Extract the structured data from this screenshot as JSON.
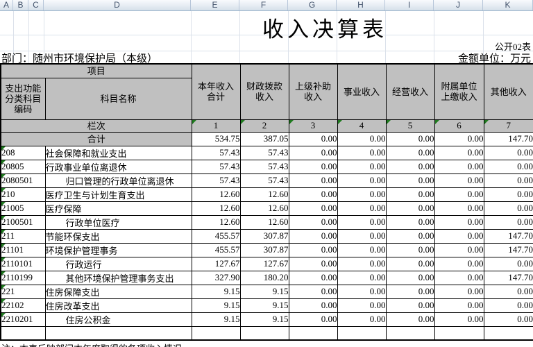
{
  "sheet": {
    "column_letters": [
      "A",
      "B",
      "C",
      "D",
      "E",
      "F",
      "G",
      "H",
      "I",
      "J",
      "K"
    ]
  },
  "title": "收入决算表",
  "meta": {
    "table_code": "公开02表",
    "department": "部门：随州市环境保护局（本级）",
    "unit": "金额单位：万元"
  },
  "table": {
    "project_header": "项目",
    "code_header": "支出功能\n分类科目\n编码",
    "name_header": "科目名称",
    "value_headers": [
      "本年收入\n合计",
      "财政拨款\n收入",
      "上级补助\n收入",
      "事业收入",
      "经营收入",
      "附属单位\n上缴收入",
      "其他收入"
    ],
    "column_index_label": "栏次",
    "column_indexes": [
      "1",
      "2",
      "3",
      "4",
      "5",
      "6",
      "7"
    ],
    "total_label": "合计",
    "total_values": [
      "534.75",
      "387.05",
      "0.00",
      "0.00",
      "0.00",
      "0.00",
      "147.70"
    ],
    "rows": [
      {
        "code": "208",
        "name": "社会保障和就业支出",
        "indent": false,
        "values": [
          "57.43",
          "57.43",
          "0.00",
          "0.00",
          "0.00",
          "0.00",
          "0.00"
        ]
      },
      {
        "code": "20805",
        "name": "行政事业单位离退休",
        "indent": false,
        "values": [
          "57.43",
          "57.43",
          "0.00",
          "0.00",
          "0.00",
          "0.00",
          "0.00"
        ]
      },
      {
        "code": "2080501",
        "name": "归口管理的行政单位离退休",
        "indent": true,
        "values": [
          "57.43",
          "57.43",
          "0.00",
          "0.00",
          "0.00",
          "0.00",
          "0.00"
        ]
      },
      {
        "code": "210",
        "name": "医疗卫生与计划生育支出",
        "indent": false,
        "values": [
          "12.60",
          "12.60",
          "0.00",
          "0.00",
          "0.00",
          "0.00",
          "0.00"
        ]
      },
      {
        "code": "21005",
        "name": "医疗保障",
        "indent": false,
        "values": [
          "12.60",
          "12.60",
          "0.00",
          "0.00",
          "0.00",
          "0.00",
          "0.00"
        ]
      },
      {
        "code": "2100501",
        "name": "行政单位医疗",
        "indent": true,
        "values": [
          "12.60",
          "12.60",
          "0.00",
          "0.00",
          "0.00",
          "0.00",
          "0.00"
        ]
      },
      {
        "code": "211",
        "name": "节能环保支出",
        "indent": false,
        "values": [
          "455.57",
          "307.87",
          "0.00",
          "0.00",
          "0.00",
          "0.00",
          "147.70"
        ]
      },
      {
        "code": "21101",
        "name": "环境保护管理事务",
        "indent": false,
        "values": [
          "455.57",
          "307.87",
          "0.00",
          "0.00",
          "0.00",
          "0.00",
          "147.70"
        ]
      },
      {
        "code": "2110101",
        "name": "行政运行",
        "indent": true,
        "values": [
          "127.67",
          "127.67",
          "0.00",
          "0.00",
          "0.00",
          "0.00",
          "0.00"
        ]
      },
      {
        "code": "2110199",
        "name": "其他环境保护管理事务支出",
        "indent": true,
        "values": [
          "327.90",
          "180.20",
          "0.00",
          "0.00",
          "0.00",
          "0.00",
          "147.70"
        ]
      },
      {
        "code": "221",
        "name": "住房保障支出",
        "indent": false,
        "values": [
          "9.15",
          "9.15",
          "0.00",
          "0.00",
          "0.00",
          "0.00",
          "0.00"
        ]
      },
      {
        "code": "22102",
        "name": "住房改革支出",
        "indent": false,
        "values": [
          "9.15",
          "9.15",
          "0.00",
          "0.00",
          "0.00",
          "0.00",
          "0.00"
        ]
      },
      {
        "code": "2210201",
        "name": "住房公积金",
        "indent": true,
        "values": [
          "9.15",
          "9.15",
          "0.00",
          "0.00",
          "0.00",
          "0.00",
          "0.00"
        ]
      },
      {
        "code": "",
        "name": "",
        "indent": false,
        "values": [
          "",
          "",
          "",
          "",
          "",
          "",
          ""
        ]
      }
    ]
  },
  "footnote": "注：本表反映部门本年度取得的各项收入情况。",
  "colors": {
    "header_fill": "#c0c0c0",
    "grid_border": "#000000",
    "flag_green": "#1f7a1f",
    "strip_text": "#44546c"
  }
}
